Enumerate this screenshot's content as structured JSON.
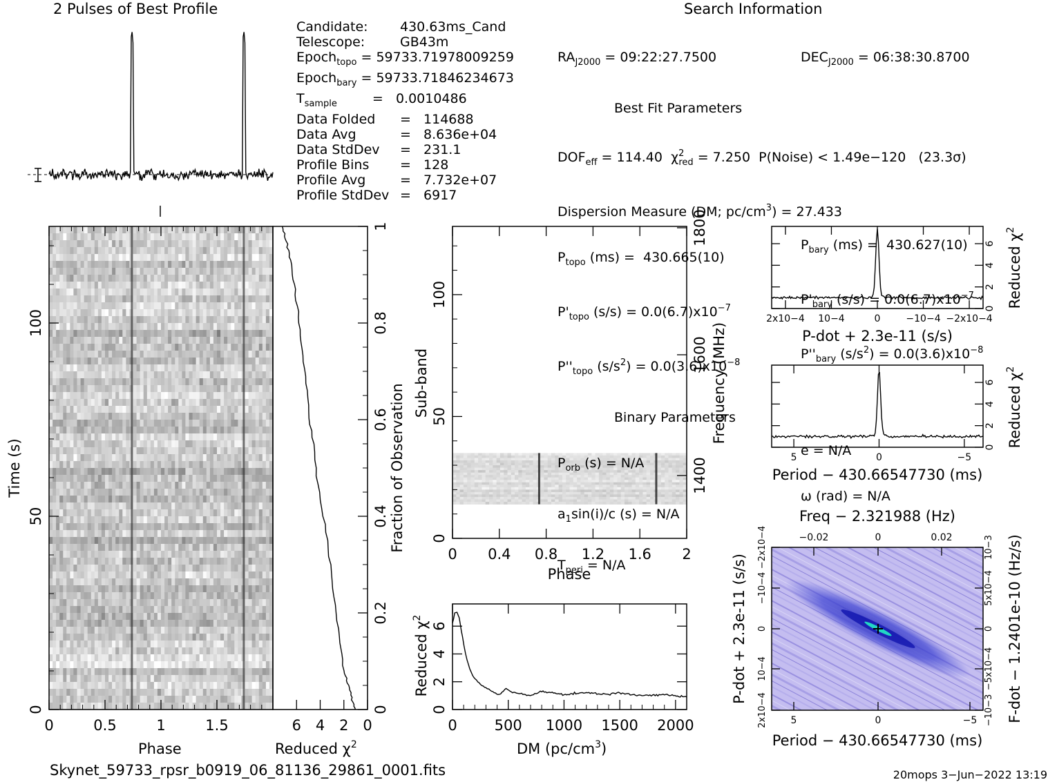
{
  "header": {
    "profile_title": "2 Pulses of Best Profile",
    "search_title": "Search Information"
  },
  "info_col1": [
    {
      "k": "Candidate:",
      "v": "430.63ms_Cand"
    },
    {
      "k": "Telescope:",
      "v": "GB43m"
    },
    {
      "k": "Epoch",
      "sub": "topo",
      "v": "= 59733.71978009259"
    },
    {
      "k": "Epoch",
      "sub": "bary",
      "v": "= 59733.71846234673"
    },
    {
      "k": "T",
      "sub": "sample",
      "v": "=   0.0010486"
    },
    {
      "k": "Data Folded",
      "v": "=   114688"
    },
    {
      "k": "Data Avg",
      "v": "=   8.636e+04"
    },
    {
      "k": "Data StdDev",
      "v": "=   231.1"
    },
    {
      "k": "Profile Bins",
      "v": "=   128"
    },
    {
      "k": "Profile Avg",
      "v": "=   7.732e+07"
    },
    {
      "k": "Profile StdDev",
      "v": "=   6917"
    }
  ],
  "info_col2": {
    "ra": {
      "k": "RA",
      "sub": "J2000",
      "v": "= 09:22:27.7500"
    },
    "best_fit_title": "Best Fit Parameters",
    "dof": "DOF",
    "dof_sub": "eff",
    "dof_val": "= 114.40",
    "chi_label": "χ",
    "chi_sup": "2",
    "chi_sub": "red",
    "chi_val": "= 7.250",
    "pnoise": "P(Noise) < 1.49e−120   (23.3σ)",
    "dm": "Dispersion Measure (DM; pc/cm",
    "dm_sup": "3",
    "dm_val": ") = 27.433",
    "ptopo": "P",
    "ptopo_sub": "topo",
    "ptopo_val": "(ms) =  430.665(10)",
    "pdtopo": "P'",
    "pdtopo_sub": "topo",
    "pdtopo_val": "(s/s) = 0.0(6.7)x10",
    "pdtopo_exp": "−7",
    "pddtopo": "P''",
    "pddtopo_sub": "topo",
    "pddtopo_val": "(s/s",
    "pddtopo_sup": "2",
    "pddtopo_val2": ") = 0.0(3.6)x10",
    "pddtopo_exp": "−8",
    "binary_title": "Binary Parameters",
    "porb": "P",
    "porb_sub": "orb",
    "porb_val": "(s) = N/A",
    "a1": "a",
    "a1_sub": "1",
    "a1_val": "sin(i)/c (s) = N/A",
    "tperi": "T",
    "tperi_sub": "peri",
    "tperi_val": "= N/A"
  },
  "info_col3": {
    "dec": "DEC",
    "dec_sub": "J2000",
    "dec_val": "= 06:38:30.8700",
    "pbary": "P",
    "pbary_sub": "bary",
    "pbary_val": "(ms) =  430.627(10)",
    "pdbary": "P'",
    "pdbary_sub": "bary",
    "pdbary_val": "(s/s) = 0.0(6.7)x10",
    "pdbary_exp": "−7",
    "pddbary": "P''",
    "pddbary_sub": "bary",
    "pddbary_val": "(s/s",
    "pddbary_sup": "2",
    "pddbary_val2": ") = 0.0(3.6)x10",
    "pddbary_exp": "−8",
    "ecc": "e = N/A",
    "omega": "ω (rad) = N/A"
  },
  "footer": {
    "filename": "Skynet_59733_rpsr_b0919_06_81136_29861_0001.fits",
    "stamp": "20mops   3−Jun−2022 13:19"
  },
  "colors": {
    "grey_dark": "#404040",
    "pdot_bg": "#b9b2ee",
    "pdot_dark": "#2a2fc8",
    "peak": "#22d6c4"
  },
  "chart_data": [
    {
      "type": "line",
      "id": "profile",
      "title": "2 Pulses of Best Profile",
      "x_range": [
        0,
        2
      ],
      "peaks_phase": [
        0.74,
        1.74
      ],
      "baseline_error_bar": true
    },
    {
      "type": "heatmap",
      "id": "time_phase",
      "xlabel": "Phase",
      "ylabel": "Time (s)",
      "x_ticks": [
        "0",
        "0.5",
        "1",
        "1.5"
      ],
      "y_ticks": [
        "0",
        "50",
        "100"
      ],
      "xlim": [
        0,
        2
      ],
      "ylim": [
        0,
        125
      ],
      "pulse_phase": [
        0.74,
        1.74
      ]
    },
    {
      "type": "line",
      "id": "chi_vs_time",
      "xlabel": "Reduced χ2",
      "ylabel_right": "Fraction of Observation",
      "x_ticks": [
        "6",
        "4",
        "2",
        "0"
      ],
      "y_ticks_right": [
        "0",
        "0.2",
        "0.4",
        "0.6",
        "0.8",
        "1"
      ],
      "xlim": [
        8,
        0
      ],
      "points": [
        [
          1.0,
          0.0
        ],
        [
          1.3,
          0.02
        ],
        [
          1.6,
          0.05
        ],
        [
          2.0,
          0.08
        ],
        [
          2.4,
          0.15
        ],
        [
          2.9,
          0.25
        ],
        [
          3.4,
          0.35
        ],
        [
          4.1,
          0.45
        ],
        [
          4.6,
          0.55
        ],
        [
          5.0,
          0.63
        ],
        [
          5.4,
          0.72
        ],
        [
          5.8,
          0.8
        ],
        [
          6.1,
          0.87
        ],
        [
          6.5,
          0.93
        ],
        [
          6.9,
          0.97
        ],
        [
          7.2,
          1.0
        ]
      ]
    },
    {
      "type": "heatmap",
      "id": "subband_phase",
      "xlabel": "Phase",
      "ylabel": "Sub-band",
      "ylabel_right": "Frequency (MHz)",
      "x_ticks": [
        "0",
        "0.4",
        "0.8",
        "1.2",
        "1.6",
        "2"
      ],
      "y_ticks": [
        "0",
        "50",
        "100"
      ],
      "y_ticks_right": [
        "1400",
        "1600",
        "1800"
      ],
      "xlim": [
        0,
        2
      ],
      "ylim": [
        0,
        128
      ],
      "data_band": [
        14,
        35
      ],
      "pulse_phase": [
        0.74,
        1.74
      ]
    },
    {
      "type": "line",
      "id": "dm_curve",
      "xlabel": "DM (pc/cm3)",
      "ylabel": "Reduced χ2",
      "x_ticks": [
        "0",
        "500",
        "1000",
        "1500",
        "2000"
      ],
      "y_ticks": [
        "0",
        "2",
        "4",
        "6"
      ],
      "xlim": [
        0,
        2100
      ],
      "ylim": [
        0,
        7.6
      ],
      "points": [
        [
          0,
          6.2
        ],
        [
          20,
          6.9
        ],
        [
          40,
          7.0
        ],
        [
          60,
          6.6
        ],
        [
          90,
          5.2
        ],
        [
          130,
          3.5
        ],
        [
          180,
          2.4
        ],
        [
          250,
          1.8
        ],
        [
          350,
          1.3
        ],
        [
          420,
          1.1
        ],
        [
          480,
          1.5
        ],
        [
          550,
          1.2
        ],
        [
          700,
          1.0
        ],
        [
          800,
          1.3
        ],
        [
          1000,
          1.1
        ],
        [
          1200,
          1.2
        ],
        [
          1400,
          1.1
        ],
        [
          1500,
          1.2
        ],
        [
          1700,
          1.0
        ],
        [
          1900,
          1.1
        ],
        [
          2100,
          0.9
        ]
      ]
    },
    {
      "type": "line",
      "id": "pdot_curve",
      "xlabel": "P-dot + 2.3e-11 (s/s)",
      "ylabel_right": "Reduced χ2",
      "x_ticks": [
        "2x10−4",
        "10−4",
        "0",
        "−10−4",
        "−2x10−4"
      ],
      "y_ticks_right": [
        "0",
        "2",
        "4",
        "6"
      ],
      "xlim": [
        0.00023,
        -0.00023
      ],
      "ylim": [
        0,
        7.6
      ],
      "peak": 7.0,
      "baseline": 1.0
    },
    {
      "type": "line",
      "id": "period_curve",
      "xlabel": "Period − 430.66547730 (ms)",
      "ylabel_right": "Reduced χ2",
      "x_ticks": [
        "5",
        "0",
        "−5"
      ],
      "y_ticks_right": [
        "0",
        "2",
        "4",
        "6"
      ],
      "xlim": [
        6.3,
        -6.1
      ],
      "ylim": [
        0,
        7.6
      ],
      "peak": 6.8,
      "baseline": 1.0
    },
    {
      "type": "heatmap",
      "id": "p_pdot_plane",
      "title": "Freq − 2.321988 (Hz)",
      "xlabel": "Period − 430.66547730 (ms)",
      "ylabel": "P-dot + 2.3e-11 (s/s)",
      "ylabel_right": "F-dot − 1.2401e-10 (Hz/s)",
      "x_ticks": [
        "5",
        "0",
        "−5"
      ],
      "x_ticks_top": [
        "−0.02",
        "0",
        "0.02"
      ],
      "y_ticks": [
        "2x10−4",
        "10−4",
        "0",
        "−10−4",
        "−2x10−4"
      ],
      "y_ticks_right": [
        "−10−3",
        "−5x10−4",
        "0",
        "5x10−4",
        "10−3"
      ]
    }
  ]
}
